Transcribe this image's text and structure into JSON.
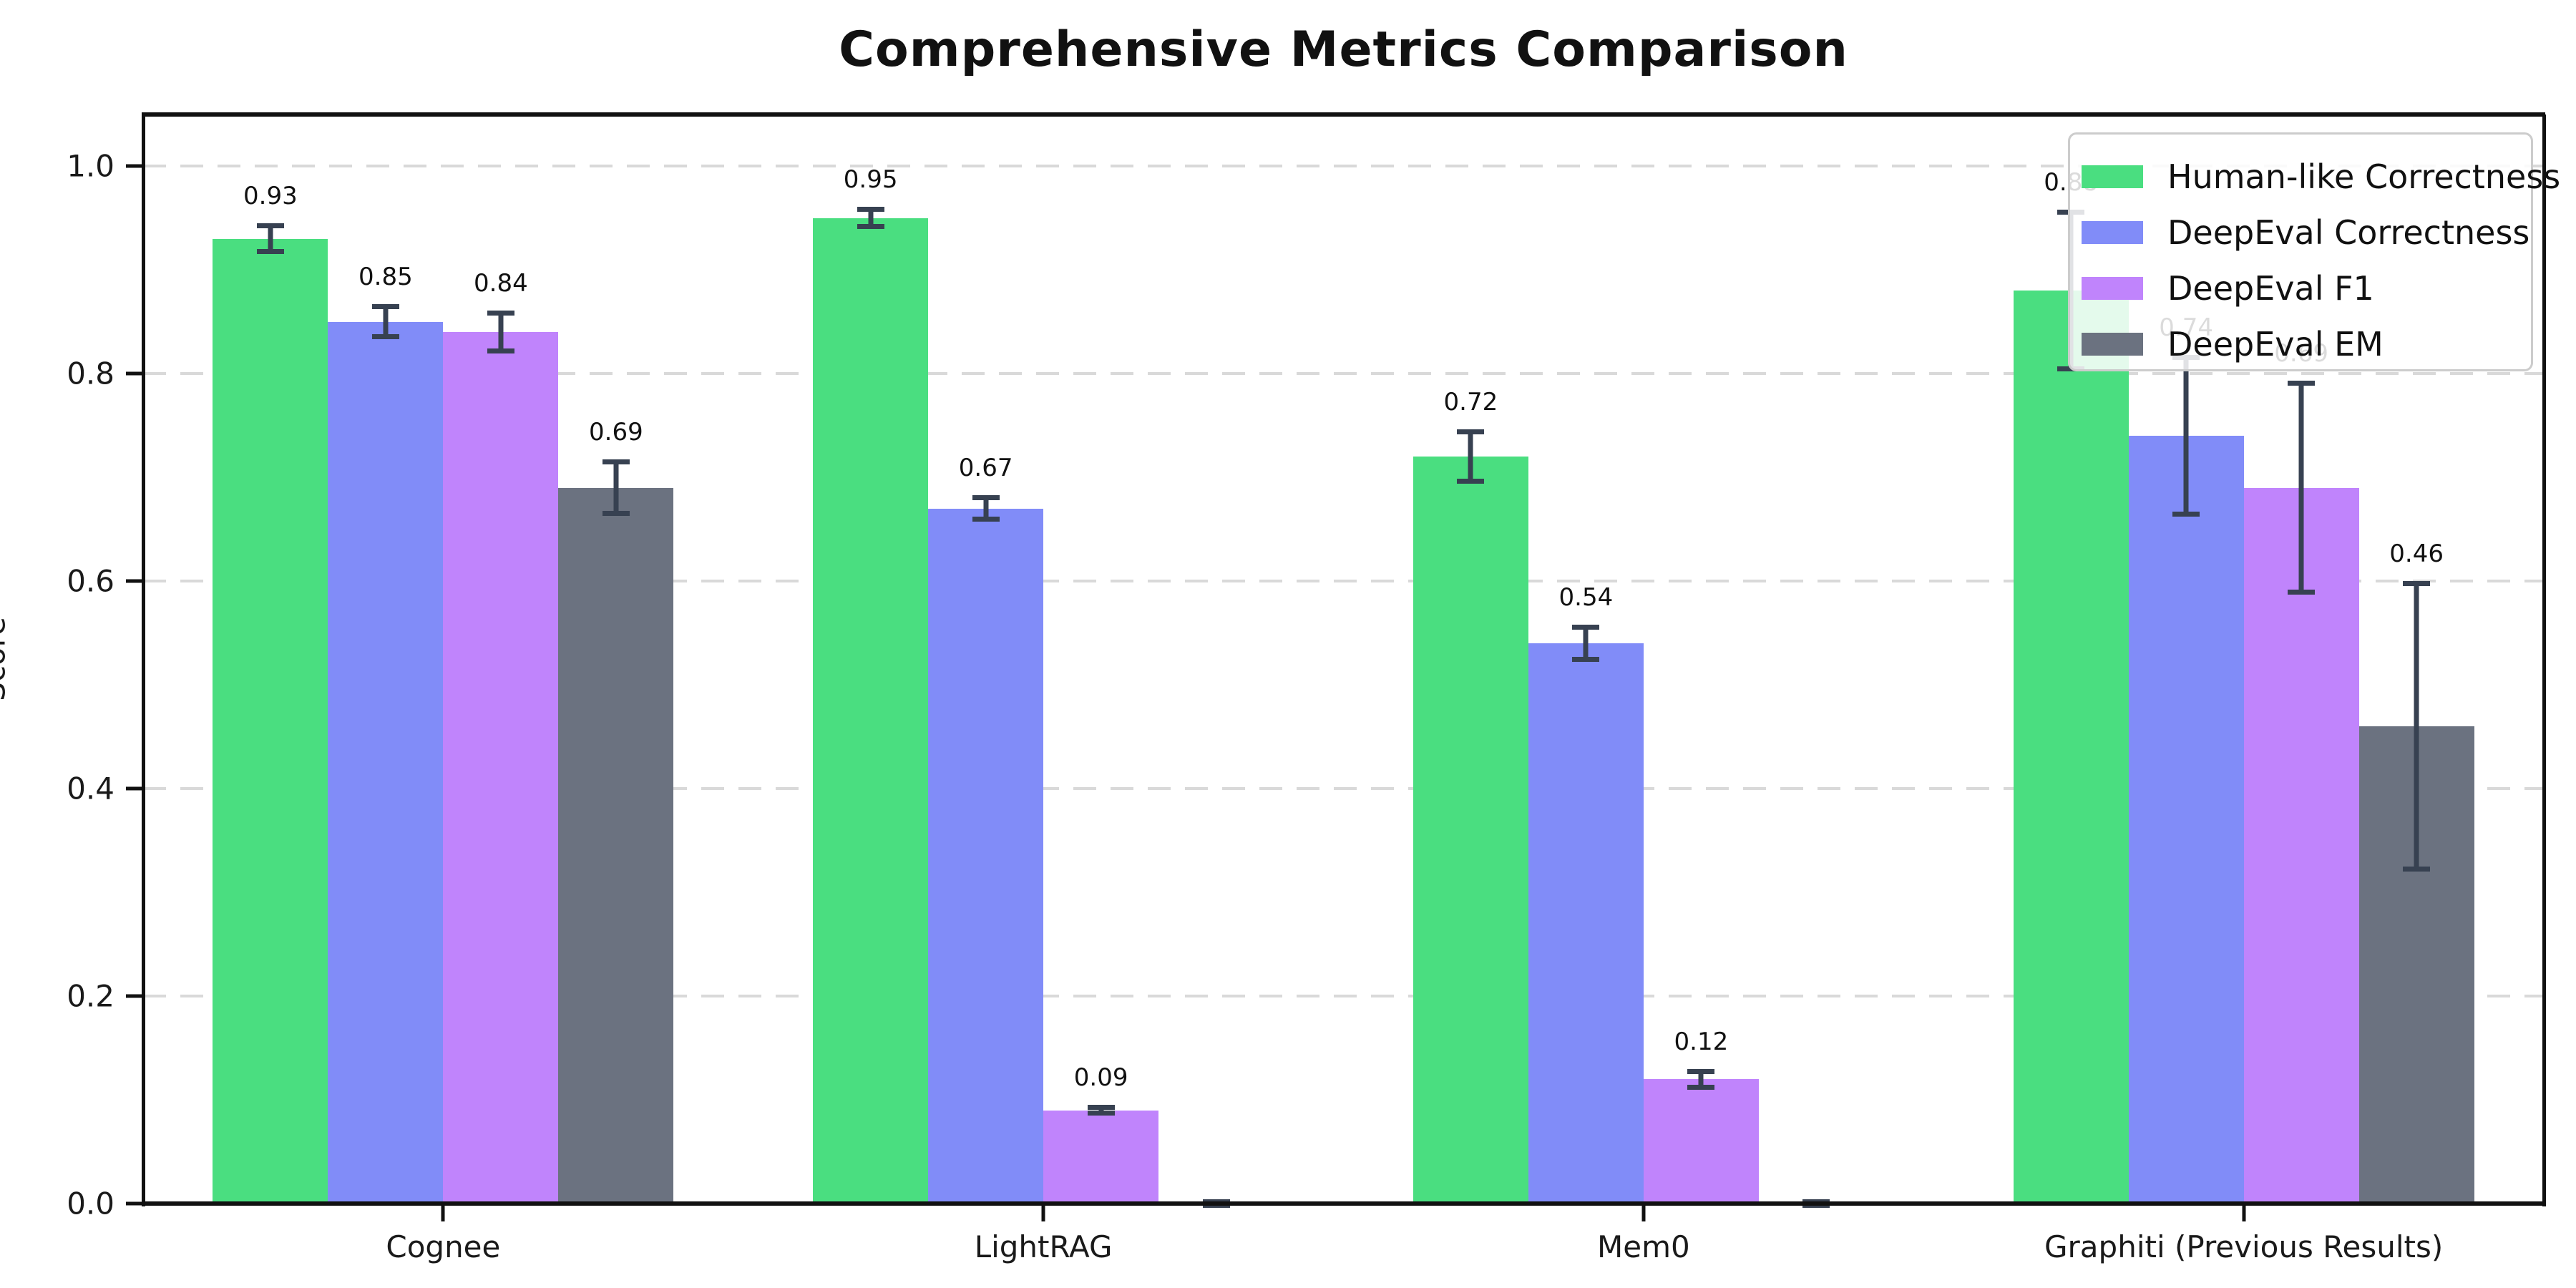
{
  "title": "Comprehensive Metrics Comparison",
  "chart_data": {
    "type": "bar",
    "title": "Comprehensive Metrics Comparison",
    "xlabel": "",
    "ylabel": "Score",
    "categories": [
      "Cognee",
      "LightRAG",
      "Mem0",
      "Graphiti (Previous Results)"
    ],
    "ylim": [
      0.0,
      1.05
    ],
    "yticks": [
      {
        "v": 0.0,
        "label": "0.0"
      },
      {
        "v": 0.2,
        "label": "0.2"
      },
      {
        "v": 0.4,
        "label": "0.4"
      },
      {
        "v": 0.6,
        "label": "0.6"
      },
      {
        "v": 0.8,
        "label": "0.8"
      },
      {
        "v": 1.0,
        "label": "1.0"
      }
    ],
    "grid": "horizontal-dashed",
    "legend_position": "upper-right",
    "error_bar_color": "#374151",
    "series": [
      {
        "name": "Human-like Correctness",
        "color": "#4ade80",
        "values": [
          0.93,
          0.95,
          0.72,
          0.88
        ],
        "errors": [
          0.015,
          0.011,
          0.026,
          0.078
        ],
        "labels": [
          "0.93",
          "0.95",
          "0.72",
          "0.88"
        ]
      },
      {
        "name": "DeepEval Correctness",
        "color": "#818cf8",
        "values": [
          0.85,
          0.67,
          0.54,
          0.74
        ],
        "errors": [
          0.017,
          0.013,
          0.018,
          0.078
        ],
        "labels": [
          "0.85",
          "0.67",
          "0.54",
          "0.74"
        ]
      },
      {
        "name": "DeepEval F1",
        "color": "#c084fc",
        "values": [
          0.84,
          0.09,
          0.12,
          0.69
        ],
        "errors": [
          0.021,
          0.005,
          0.01,
          0.103
        ],
        "labels": [
          "0.84",
          "0.09",
          "0.12",
          "0.69"
        ]
      },
      {
        "name": "DeepEval EM",
        "color": "#6b7280",
        "values": [
          0.69,
          0.0,
          0.0,
          0.46
        ],
        "errors": [
          0.027,
          0.004,
          0.004,
          0.14
        ],
        "labels": [
          "0.69",
          "",
          "",
          "0.46"
        ]
      }
    ]
  }
}
